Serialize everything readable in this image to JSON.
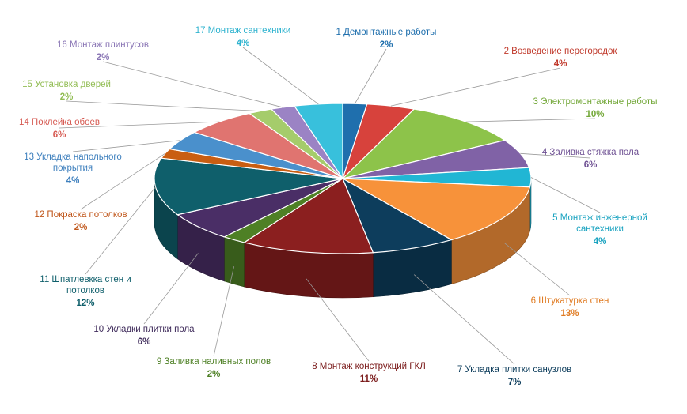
{
  "chart_data": {
    "type": "pie",
    "style": "3d-exploded",
    "start_angle_deg": -90,
    "direction": "clockwise",
    "slices": [
      {
        "label": "1 Демонтажные  работы",
        "pct_label": "2%",
        "value": 2,
        "color": "#1f6fad",
        "label_color": "#1f6fad"
      },
      {
        "label": "2 Возведение перегородок",
        "pct_label": "4%",
        "value": 4,
        "color": "#d7423c",
        "label_color": "#c0392b"
      },
      {
        "label": "3 Электромонтажные  работы",
        "pct_label": "10%",
        "value": 10,
        "color": "#8dc34a",
        "label_color": "#74a83a"
      },
      {
        "label": "4 Заливка  стяжка пола",
        "pct_label": "6%",
        "value": 6,
        "color": "#8062a6",
        "label_color": "#6d4f92"
      },
      {
        "label": "5 Монтаж  инженерной сантехники",
        "pct_label": "4%",
        "value": 4,
        "color": "#21b6d4",
        "label_color": "#1aa3c0"
      },
      {
        "label": "6 Штукатурка   стен",
        "pct_label": "13%",
        "value": 13,
        "color": "#f7923a",
        "label_color": "#e07b22"
      },
      {
        "label": "7 Укладка плитки санузлов",
        "pct_label": "7%",
        "value": 7,
        "color": "#0d3d5c",
        "label_color": "#0d3d5c"
      },
      {
        "label": "8 Монтаж конструкций  ГКЛ",
        "pct_label": "11%",
        "value": 11,
        "color": "#8b1f1f",
        "label_color": "#7a1a1a"
      },
      {
        "label": "9 Заливка  наливных  полов",
        "pct_label": "2%",
        "value": 2,
        "color": "#4e8025",
        "label_color": "#4e8025"
      },
      {
        "label": "10 Укладки  плитки  пола",
        "pct_label": "6%",
        "value": 6,
        "color": "#4a2e66",
        "label_color": "#3e2a5a"
      },
      {
        "label": "11 Шпатлевкка  стен и потолков",
        "pct_label": "12%",
        "value": 12,
        "color": "#0f5f6b",
        "label_color": "#0f5f6b"
      },
      {
        "label": "12 Покраска  потолков",
        "pct_label": "2%",
        "value": 2,
        "color": "#c95e12",
        "label_color": "#c0561a"
      },
      {
        "label": "13 Укладка  напольного покрытия",
        "pct_label": "4%",
        "value": 4,
        "color": "#4a90cc",
        "label_color": "#3d7fbd"
      },
      {
        "label": "14 Поклейка  обоев",
        "pct_label": "6%",
        "value": 6,
        "color": "#e07470",
        "label_color": "#d65a52"
      },
      {
        "label": "15 Установка  дверей",
        "pct_label": "2%",
        "value": 2,
        "color": "#a5cc6b",
        "label_color": "#92bd54"
      },
      {
        "label": "16 Монтаж  плинтусов",
        "pct_label": "2%",
        "value": 2,
        "color": "#9b83c4",
        "label_color": "#8a76b5"
      },
      {
        "label": "17 Монтаж  сантехники",
        "pct_label": "4%",
        "value": 4,
        "color": "#38c0dc",
        "label_color": "#2fb3cf"
      }
    ],
    "legend": "none"
  }
}
